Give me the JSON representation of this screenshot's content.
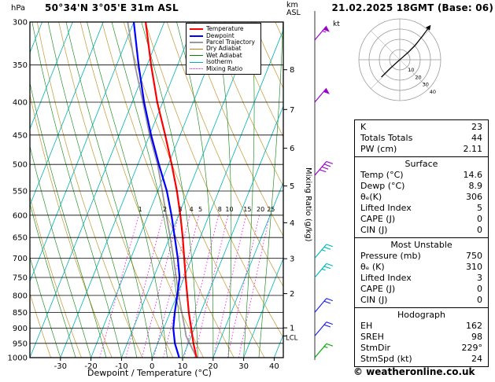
{
  "header": {
    "pressure_unit_label": "hPa",
    "station_title": "50°34'N 3°05'E 31m ASL",
    "km_axis_label_line1": "km",
    "km_axis_label_line2": "ASL",
    "datetime": "21.02.2025 18GMT (Base: 06)"
  },
  "hodograph_panel": {
    "unit_label": "kt"
  },
  "chart_data": {
    "type": "skewt-logp-sounding",
    "x_axis_label": "Dewpoint / Temperature (°C)",
    "right_axis_label": "Mixing Ratio (g/kg)",
    "pressure_ticks_hpa": [
      300,
      350,
      400,
      450,
      500,
      550,
      600,
      650,
      700,
      750,
      800,
      850,
      900,
      950,
      1000
    ],
    "temp_ticks_c": [
      -30,
      -20,
      -10,
      0,
      10,
      20,
      30,
      40
    ],
    "km_ticks": [
      1,
      2,
      3,
      4,
      5,
      6,
      7,
      8
    ],
    "lcl_label": "LCL",
    "lcl_pressure_hpa": 925,
    "mixing_ratio_lines_gkg": [
      1,
      2,
      3,
      4,
      5,
      8,
      10,
      15,
      20,
      25
    ],
    "sounding": {
      "pressure_hpa": [
        300,
        350,
        400,
        450,
        500,
        550,
        600,
        650,
        700,
        750,
        800,
        850,
        900,
        950,
        1000
      ],
      "temperature_c": [
        -46.1,
        -38.7,
        -31.8,
        -24.9,
        -18.9,
        -13.7,
        -9.4,
        -5.7,
        -2.5,
        0.5,
        3.4,
        6.1,
        9.0,
        11.7,
        14.6
      ],
      "dewpoint_c": [
        -50.0,
        -42.8,
        -36.1,
        -29.5,
        -23.1,
        -17.0,
        -12.3,
        -8.3,
        -4.6,
        -1.5,
        0.1,
        1.5,
        3.1,
        5.6,
        8.9
      ],
      "parcel_pressure_hpa": [
        300,
        350,
        400,
        450,
        500,
        550,
        600,
        650,
        700,
        750,
        800,
        850,
        900,
        925,
        1000
      ],
      "parcel_temp_c": [
        -52.0,
        -44.0,
        -36.5,
        -30.0,
        -23.5,
        -18.5,
        -14.0,
        -9.8,
        -6.0,
        -2.6,
        0.6,
        3.8,
        6.9,
        8.3,
        14.6
      ]
    },
    "wind_barbs": [
      {
        "pressure_hpa": 320,
        "speed_kt": 55,
        "color": "#9900cc"
      },
      {
        "pressure_hpa": 400,
        "speed_kt": 50,
        "color": "#9900cc"
      },
      {
        "pressure_hpa": 520,
        "speed_kt": 40,
        "color": "#9900cc"
      },
      {
        "pressure_hpa": 700,
        "speed_kt": 25,
        "color": "#00bbbb"
      },
      {
        "pressure_hpa": 750,
        "speed_kt": 25,
        "color": "#00bbbb"
      },
      {
        "pressure_hpa": 850,
        "speed_kt": 20,
        "color": "#2222ee"
      },
      {
        "pressure_hpa": 925,
        "speed_kt": 20,
        "color": "#2222ee"
      },
      {
        "pressure_hpa": 1000,
        "speed_kt": 15,
        "color": "#00aa00"
      }
    ],
    "legend": [
      {
        "label": "Temperature",
        "color": "#ff0000",
        "thick": true,
        "dotted": false
      },
      {
        "label": "Dewpoint",
        "color": "#0000ff",
        "thick": true,
        "dotted": false
      },
      {
        "label": "Parcel Trajectory",
        "color": "#999999",
        "thick": true,
        "dotted": false
      },
      {
        "label": "Dry Adiabat",
        "color": "#b8860b",
        "thick": false,
        "dotted": false
      },
      {
        "label": "Wet Adiabat",
        "color": "#008000",
        "thick": false,
        "dotted": false
      },
      {
        "label": "Isotherm",
        "color": "#00b3b3",
        "thick": false,
        "dotted": false
      },
      {
        "label": "Mixing Ratio",
        "color": "#ff00ff",
        "thick": false,
        "dotted": true
      }
    ],
    "hodograph": {
      "ring_radii_kt": [
        10,
        20,
        30,
        40
      ],
      "trace_uv_kt": [
        [
          -18,
          -17
        ],
        [
          -9,
          -8
        ],
        [
          0,
          0
        ],
        [
          8,
          7
        ],
        [
          15,
          14
        ],
        [
          22,
          23
        ],
        [
          28,
          31
        ]
      ]
    },
    "colors": {
      "temperature": "#ff0000",
      "dewpoint": "#0000ff",
      "parcel": "#999999",
      "dry_adiabat": "#b8860b",
      "wet_adiabat": "#008000",
      "isotherm": "#00b3b3",
      "mixing_ratio": "#ff00ff"
    }
  },
  "stats": {
    "sections": [
      {
        "title": "",
        "rows": [
          [
            "K",
            "23"
          ],
          [
            "Totals Totals",
            "44"
          ],
          [
            "PW (cm)",
            "2.11"
          ]
        ]
      },
      {
        "title": "Surface",
        "rows": [
          [
            "Temp (°C)",
            "14.6"
          ],
          [
            "Dewp (°C)",
            "8.9"
          ],
          [
            "θₑ(K)",
            "306"
          ],
          [
            "Lifted Index",
            "5"
          ],
          [
            "CAPE (J)",
            "0"
          ],
          [
            "CIN (J)",
            "0"
          ]
        ]
      },
      {
        "title": "Most Unstable",
        "rows": [
          [
            "Pressure (mb)",
            "750"
          ],
          [
            "θₑ (K)",
            "310"
          ],
          [
            "Lifted Index",
            "3"
          ],
          [
            "CAPE (J)",
            "0"
          ],
          [
            "CIN (J)",
            "0"
          ]
        ]
      },
      {
        "title": "Hodograph",
        "rows": [
          [
            "EH",
            "162"
          ],
          [
            "SREH",
            "98"
          ],
          [
            "StmDir",
            "229°"
          ],
          [
            "StmSpd (kt)",
            "24"
          ]
        ]
      }
    ]
  },
  "footer": {
    "copyright": "© weatheronline.co.uk"
  }
}
